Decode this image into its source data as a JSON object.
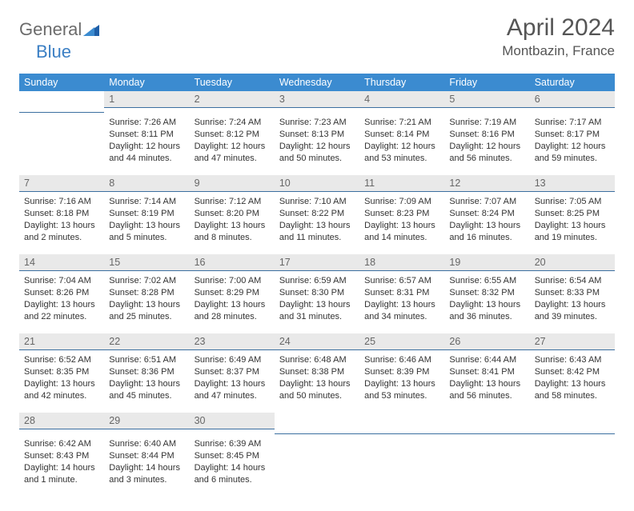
{
  "logo": {
    "text1": "General",
    "text2": "Blue"
  },
  "title": "April 2024",
  "location": "Montbazin, France",
  "colors": {
    "header_bg": "#3b8bd0",
    "header_text": "#ffffff",
    "daynum_bg": "#e9e9e9",
    "daynum_border": "#3b6fa0",
    "body_text": "#333333",
    "title_text": "#555555",
    "logo_gray": "#6b6b6b",
    "logo_blue": "#3b7fc4"
  },
  "day_headers": [
    "Sunday",
    "Monday",
    "Tuesday",
    "Wednesday",
    "Thursday",
    "Friday",
    "Saturday"
  ],
  "weeks": [
    [
      {
        "n": "",
        "sr": "",
        "ss": "",
        "dl": ""
      },
      {
        "n": "1",
        "sr": "Sunrise: 7:26 AM",
        "ss": "Sunset: 8:11 PM",
        "dl": "Daylight: 12 hours and 44 minutes."
      },
      {
        "n": "2",
        "sr": "Sunrise: 7:24 AM",
        "ss": "Sunset: 8:12 PM",
        "dl": "Daylight: 12 hours and 47 minutes."
      },
      {
        "n": "3",
        "sr": "Sunrise: 7:23 AM",
        "ss": "Sunset: 8:13 PM",
        "dl": "Daylight: 12 hours and 50 minutes."
      },
      {
        "n": "4",
        "sr": "Sunrise: 7:21 AM",
        "ss": "Sunset: 8:14 PM",
        "dl": "Daylight: 12 hours and 53 minutes."
      },
      {
        "n": "5",
        "sr": "Sunrise: 7:19 AM",
        "ss": "Sunset: 8:16 PM",
        "dl": "Daylight: 12 hours and 56 minutes."
      },
      {
        "n": "6",
        "sr": "Sunrise: 7:17 AM",
        "ss": "Sunset: 8:17 PM",
        "dl": "Daylight: 12 hours and 59 minutes."
      }
    ],
    [
      {
        "n": "7",
        "sr": "Sunrise: 7:16 AM",
        "ss": "Sunset: 8:18 PM",
        "dl": "Daylight: 13 hours and 2 minutes."
      },
      {
        "n": "8",
        "sr": "Sunrise: 7:14 AM",
        "ss": "Sunset: 8:19 PM",
        "dl": "Daylight: 13 hours and 5 minutes."
      },
      {
        "n": "9",
        "sr": "Sunrise: 7:12 AM",
        "ss": "Sunset: 8:20 PM",
        "dl": "Daylight: 13 hours and 8 minutes."
      },
      {
        "n": "10",
        "sr": "Sunrise: 7:10 AM",
        "ss": "Sunset: 8:22 PM",
        "dl": "Daylight: 13 hours and 11 minutes."
      },
      {
        "n": "11",
        "sr": "Sunrise: 7:09 AM",
        "ss": "Sunset: 8:23 PM",
        "dl": "Daylight: 13 hours and 14 minutes."
      },
      {
        "n": "12",
        "sr": "Sunrise: 7:07 AM",
        "ss": "Sunset: 8:24 PM",
        "dl": "Daylight: 13 hours and 16 minutes."
      },
      {
        "n": "13",
        "sr": "Sunrise: 7:05 AM",
        "ss": "Sunset: 8:25 PM",
        "dl": "Daylight: 13 hours and 19 minutes."
      }
    ],
    [
      {
        "n": "14",
        "sr": "Sunrise: 7:04 AM",
        "ss": "Sunset: 8:26 PM",
        "dl": "Daylight: 13 hours and 22 minutes."
      },
      {
        "n": "15",
        "sr": "Sunrise: 7:02 AM",
        "ss": "Sunset: 8:28 PM",
        "dl": "Daylight: 13 hours and 25 minutes."
      },
      {
        "n": "16",
        "sr": "Sunrise: 7:00 AM",
        "ss": "Sunset: 8:29 PM",
        "dl": "Daylight: 13 hours and 28 minutes."
      },
      {
        "n": "17",
        "sr": "Sunrise: 6:59 AM",
        "ss": "Sunset: 8:30 PM",
        "dl": "Daylight: 13 hours and 31 minutes."
      },
      {
        "n": "18",
        "sr": "Sunrise: 6:57 AM",
        "ss": "Sunset: 8:31 PM",
        "dl": "Daylight: 13 hours and 34 minutes."
      },
      {
        "n": "19",
        "sr": "Sunrise: 6:55 AM",
        "ss": "Sunset: 8:32 PM",
        "dl": "Daylight: 13 hours and 36 minutes."
      },
      {
        "n": "20",
        "sr": "Sunrise: 6:54 AM",
        "ss": "Sunset: 8:33 PM",
        "dl": "Daylight: 13 hours and 39 minutes."
      }
    ],
    [
      {
        "n": "21",
        "sr": "Sunrise: 6:52 AM",
        "ss": "Sunset: 8:35 PM",
        "dl": "Daylight: 13 hours and 42 minutes."
      },
      {
        "n": "22",
        "sr": "Sunrise: 6:51 AM",
        "ss": "Sunset: 8:36 PM",
        "dl": "Daylight: 13 hours and 45 minutes."
      },
      {
        "n": "23",
        "sr": "Sunrise: 6:49 AM",
        "ss": "Sunset: 8:37 PM",
        "dl": "Daylight: 13 hours and 47 minutes."
      },
      {
        "n": "24",
        "sr": "Sunrise: 6:48 AM",
        "ss": "Sunset: 8:38 PM",
        "dl": "Daylight: 13 hours and 50 minutes."
      },
      {
        "n": "25",
        "sr": "Sunrise: 6:46 AM",
        "ss": "Sunset: 8:39 PM",
        "dl": "Daylight: 13 hours and 53 minutes."
      },
      {
        "n": "26",
        "sr": "Sunrise: 6:44 AM",
        "ss": "Sunset: 8:41 PM",
        "dl": "Daylight: 13 hours and 56 minutes."
      },
      {
        "n": "27",
        "sr": "Sunrise: 6:43 AM",
        "ss": "Sunset: 8:42 PM",
        "dl": "Daylight: 13 hours and 58 minutes."
      }
    ],
    [
      {
        "n": "28",
        "sr": "Sunrise: 6:42 AM",
        "ss": "Sunset: 8:43 PM",
        "dl": "Daylight: 14 hours and 1 minute."
      },
      {
        "n": "29",
        "sr": "Sunrise: 6:40 AM",
        "ss": "Sunset: 8:44 PM",
        "dl": "Daylight: 14 hours and 3 minutes."
      },
      {
        "n": "30",
        "sr": "Sunrise: 6:39 AM",
        "ss": "Sunset: 8:45 PM",
        "dl": "Daylight: 14 hours and 6 minutes."
      },
      {
        "n": "",
        "sr": "",
        "ss": "",
        "dl": ""
      },
      {
        "n": "",
        "sr": "",
        "ss": "",
        "dl": ""
      },
      {
        "n": "",
        "sr": "",
        "ss": "",
        "dl": ""
      },
      {
        "n": "",
        "sr": "",
        "ss": "",
        "dl": ""
      }
    ]
  ]
}
